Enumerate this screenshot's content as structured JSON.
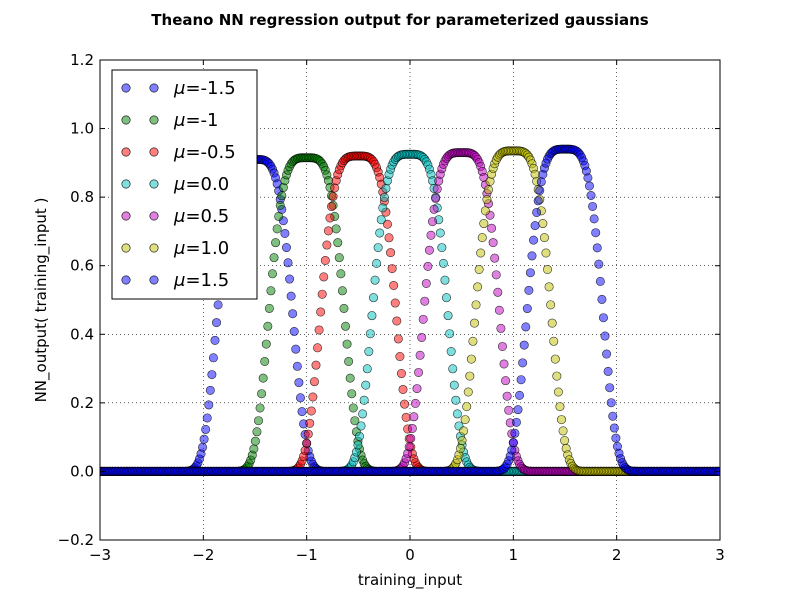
{
  "chart_data": {
    "type": "scatter",
    "title": "Theano NN regression output for parameterized gaussians",
    "xlabel": "training_input",
    "ylabel": "NN_output( training_input )",
    "xlim": [
      -3,
      3
    ],
    "ylim": [
      -0.2,
      1.2
    ],
    "x_ticks": [
      -3,
      -2,
      -1,
      0,
      1,
      2,
      3
    ],
    "x_tick_labels": [
      "−3",
      "−2",
      "−1",
      "0",
      "1",
      "2",
      "3"
    ],
    "y_ticks": [
      -0.2,
      0.0,
      0.2,
      0.4,
      0.6,
      0.8,
      1.0,
      1.2
    ],
    "y_tick_labels": [
      "−0.2",
      "0.0",
      "0.2",
      "0.4",
      "0.6",
      "0.8",
      "1.0",
      "1.2"
    ],
    "grid": true,
    "legend_position": "top-left",
    "legend_symbol": "μ",
    "x_sampling": {
      "start": -3,
      "end": 3,
      "points": 400
    },
    "peak_sigma": 0.3,
    "series": [
      {
        "name": "=-1.5",
        "mu": -1.5,
        "peak": 0.91,
        "color": "#0000ff"
      },
      {
        "name": "=-1",
        "mu": -1.0,
        "peak": 0.915,
        "color": "#008000"
      },
      {
        "name": "=-0.5",
        "mu": -0.5,
        "peak": 0.92,
        "color": "#ff0000"
      },
      {
        "name": "=0.0",
        "mu": 0.0,
        "peak": 0.925,
        "color": "#00bfbf"
      },
      {
        "name": "=0.5",
        "mu": 0.5,
        "peak": 0.93,
        "color": "#bf00bf"
      },
      {
        "name": "=1.0",
        "mu": 1.0,
        "peak": 0.935,
        "color": "#bfbf00"
      },
      {
        "name": "=1.5",
        "mu": 1.5,
        "peak": 0.94,
        "color": "#0000ff"
      }
    ]
  }
}
